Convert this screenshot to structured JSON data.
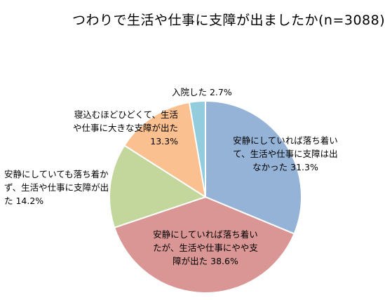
{
  "chart_data": {
    "type": "pie",
    "title": "つわりで生活や仕事に支障が出ましたか(n=3088)",
    "slices": [
      {
        "label_lines": [
          "安静にしていれば落ち着い",
          "て、生活や仕事に支障は出",
          "なかった 31.3%"
        ],
        "value": 31.3,
        "color": "#95b3d7"
      },
      {
        "label_lines": [
          "安静にしていれば落ち着い",
          "たが、生活や仕事にやや支",
          "障が出た 38.6%"
        ],
        "value": 38.6,
        "color": "#d99694"
      },
      {
        "label_lines": [
          "安静にしていても落ち着か",
          "ず、生活や仕事に支障が出",
          "た 14.2%"
        ],
        "value": 14.2,
        "color": "#c3d69b"
      },
      {
        "label_lines": [
          "寝込むほどひどくて、生活",
          "や仕事に大きな支障が出た",
          "13.3%"
        ],
        "value": 13.3,
        "color": "#fac090"
      },
      {
        "label_lines": [
          "入院した 2.7%"
        ],
        "value": 2.7,
        "color": "#93cddd"
      }
    ]
  }
}
